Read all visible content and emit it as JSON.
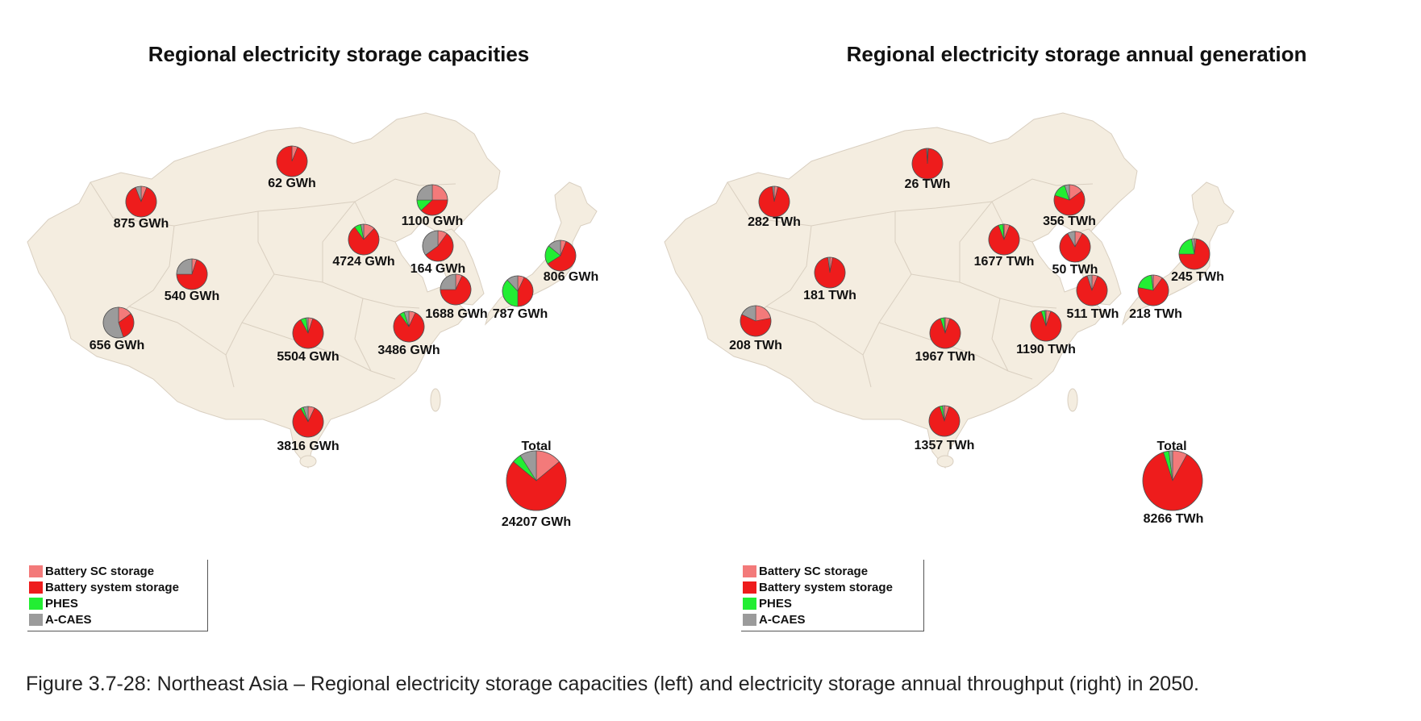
{
  "colors": {
    "battery_sc": "#f37a7a",
    "battery_system": "#ee1c1c",
    "phes": "#22ee33",
    "acaes": "#9b9b9b",
    "land": "#f4ede0",
    "border": "#d9cfc0"
  },
  "legend": [
    {
      "label": "Battery SC storage",
      "color": "#f37a7a"
    },
    {
      "label": "Battery system storage",
      "color": "#ee1c1c"
    },
    {
      "label": "PHES",
      "color": "#22ee33"
    },
    {
      "label": "A-CAES",
      "color": "#9b9b9b"
    }
  ],
  "caption": "Figure 3.7-28: Northeast Asia – Regional electricity storage capacities (left) and electricity storage annual throughput (right) in 2050.",
  "chart_data": [
    {
      "type": "pie",
      "title": "Regional electricity storage capacities",
      "series_order": [
        "Battery SC storage",
        "Battery system storage",
        "PHES",
        "A-CAES"
      ],
      "total_title": "Total",
      "total_label": "24207 GWh",
      "total_shares": [
        0.14,
        0.72,
        0.05,
        0.09
      ],
      "regions": [
        {
          "label": "62 GWh",
          "shares": [
            0.06,
            0.94,
            0.0,
            0.0
          ]
        },
        {
          "label": "875 GWh",
          "shares": [
            0.06,
            0.88,
            0.0,
            0.06
          ]
        },
        {
          "label": "1100 GWh",
          "shares": [
            0.25,
            0.38,
            0.12,
            0.25
          ]
        },
        {
          "label": "4724 GWh",
          "shares": [
            0.12,
            0.78,
            0.07,
            0.03
          ]
        },
        {
          "label": "164 GWh",
          "shares": [
            0.1,
            0.55,
            0.0,
            0.35
          ]
        },
        {
          "label": "540 GWh",
          "shares": [
            0.05,
            0.7,
            0.0,
            0.25
          ]
        },
        {
          "label": "806 GWh",
          "shares": [
            0.06,
            0.6,
            0.2,
            0.14
          ]
        },
        {
          "label": "656 GWh",
          "shares": [
            0.15,
            0.3,
            0.0,
            0.55
          ]
        },
        {
          "label": "1688 GWh",
          "shares": [
            0.07,
            0.68,
            0.0,
            0.25
          ]
        },
        {
          "label": "787 GWh",
          "shares": [
            0.07,
            0.43,
            0.38,
            0.12
          ]
        },
        {
          "label": "5504 GWh",
          "shares": [
            0.05,
            0.87,
            0.06,
            0.02
          ]
        },
        {
          "label": "3486 GWh",
          "shares": [
            0.07,
            0.83,
            0.05,
            0.05
          ]
        },
        {
          "label": "3816 GWh",
          "shares": [
            0.07,
            0.85,
            0.03,
            0.05
          ]
        }
      ]
    },
    {
      "type": "pie",
      "title": "Regional electricity storage annual generation",
      "series_order": [
        "Battery SC storage",
        "Battery system storage",
        "PHES",
        "A-CAES"
      ],
      "total_title": "Total",
      "total_label": "8266 TWh",
      "total_shares": [
        0.08,
        0.87,
        0.03,
        0.02
      ],
      "regions": [
        {
          "label": "26 TWh",
          "shares": [
            0.01,
            0.98,
            0.0,
            0.01
          ]
        },
        {
          "label": "282 TWh",
          "shares": [
            0.04,
            0.94,
            0.0,
            0.02
          ]
        },
        {
          "label": "356 TWh",
          "shares": [
            0.15,
            0.65,
            0.15,
            0.05
          ]
        },
        {
          "label": "1677 TWh",
          "shares": [
            0.06,
            0.88,
            0.05,
            0.01
          ]
        },
        {
          "label": "50 TWh",
          "shares": [
            0.08,
            0.84,
            0.0,
            0.08
          ]
        },
        {
          "label": "181 TWh",
          "shares": [
            0.03,
            0.95,
            0.0,
            0.02
          ]
        },
        {
          "label": "245 TWh",
          "shares": [
            0.02,
            0.73,
            0.22,
            0.03
          ]
        },
        {
          "label": "208 TWh",
          "shares": [
            0.22,
            0.6,
            0.0,
            0.18
          ]
        },
        {
          "label": "511 TWh",
          "shares": [
            0.06,
            0.89,
            0.0,
            0.05
          ]
        },
        {
          "label": "218 TWh",
          "shares": [
            0.1,
            0.68,
            0.2,
            0.02
          ]
        },
        {
          "label": "1967 TWh",
          "shares": [
            0.05,
            0.9,
            0.04,
            0.01
          ]
        },
        {
          "label": "1190 TWh",
          "shares": [
            0.05,
            0.9,
            0.04,
            0.01
          ]
        },
        {
          "label": "1357 TWh",
          "shares": [
            0.05,
            0.9,
            0.03,
            0.02
          ]
        }
      ]
    }
  ]
}
